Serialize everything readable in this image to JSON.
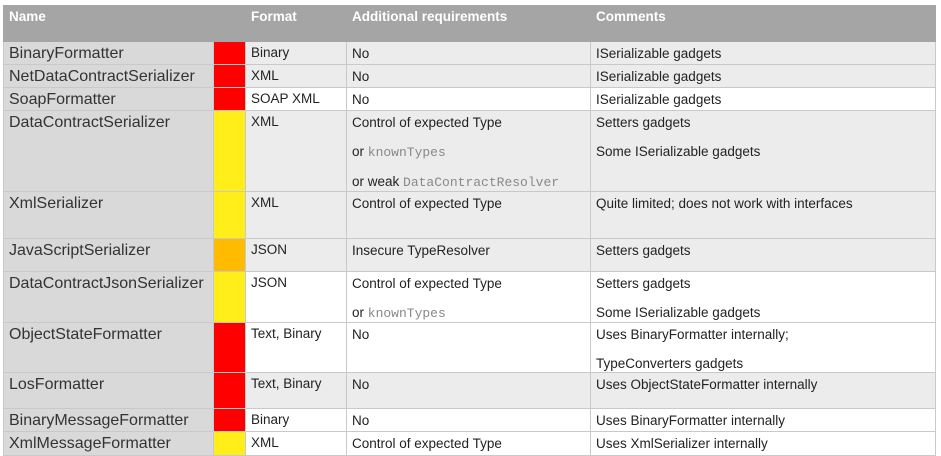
{
  "headers": {
    "name": "Name",
    "format": "Format",
    "requirements": "Additional requirements",
    "comments": "Comments"
  },
  "severity_colors": {
    "red": "#ff0000",
    "yellow": "#ffee1a",
    "orange": "#ffbb00"
  },
  "rows": [
    {
      "name": "BinaryFormatter",
      "severity": "red",
      "format": "Binary",
      "requirements": [
        {
          "text": "No"
        }
      ],
      "comments": [
        "ISerializable gadgets"
      ]
    },
    {
      "name": "NetDataContractSerializer",
      "severity": "red",
      "format": "XML",
      "requirements": [
        {
          "text": "No"
        }
      ],
      "comments": [
        "ISerializable gadgets"
      ]
    },
    {
      "name": "SoapFormatter",
      "severity": "red",
      "format": "SOAP XML",
      "requirements": [
        {
          "text": "No"
        }
      ],
      "comments": [
        "ISerializable gadgets"
      ]
    },
    {
      "name": "DataContractSerializer",
      "severity": "yellow",
      "format": "XML",
      "requirements": [
        {
          "text": "Control of expected Type"
        },
        {
          "text": "or ",
          "code": "knownTypes"
        },
        {
          "text": "or weak ",
          "code": "DataContractResolver"
        }
      ],
      "comments": [
        "Setters gadgets",
        "Some ISerializable gadgets"
      ]
    },
    {
      "name": "XmlSerializer",
      "severity": "yellow",
      "format": "XML",
      "requirements": [
        {
          "text": "Control of expected Type"
        }
      ],
      "comments": [
        "Quite limited; does not work with interfaces"
      ]
    },
    {
      "name": "JavaScriptSerializer",
      "severity": "orange",
      "format": "JSON",
      "requirements": [
        {
          "text": "Insecure TypeResolver"
        }
      ],
      "comments": [
        "Setters gadgets"
      ]
    },
    {
      "name": "DataContractJsonSerializer",
      "severity": "yellow",
      "format": "JSON",
      "requirements": [
        {
          "text": "Control of expected Type"
        },
        {
          "text": "or ",
          "code": "knownTypes"
        }
      ],
      "comments": [
        "Setters gadgets",
        "Some ISerializable gadgets"
      ]
    },
    {
      "name": "ObjectStateFormatter",
      "severity": "red",
      "format": "Text, Binary",
      "requirements": [
        {
          "text": "No"
        }
      ],
      "comments": [
        "Uses BinaryFormatter internally;",
        "TypeConverters gadgets"
      ]
    },
    {
      "name": "LosFormatter",
      "severity": "red",
      "format": "Text, Binary",
      "requirements": [
        {
          "text": "No"
        }
      ],
      "comments": [
        "Uses ObjectStateFormatter internally"
      ]
    },
    {
      "name": "BinaryMessageFormatter",
      "severity": "red",
      "format": "Binary",
      "requirements": [
        {
          "text": "No"
        }
      ],
      "comments": [
        "Uses BinaryFormatter internally"
      ]
    },
    {
      "name": "XmlMessageFormatter",
      "severity": "yellow",
      "format": "XML",
      "requirements": [
        {
          "text": "Control of expected Type"
        }
      ],
      "comments": [
        "Uses XmlSerializer internally"
      ]
    }
  ]
}
